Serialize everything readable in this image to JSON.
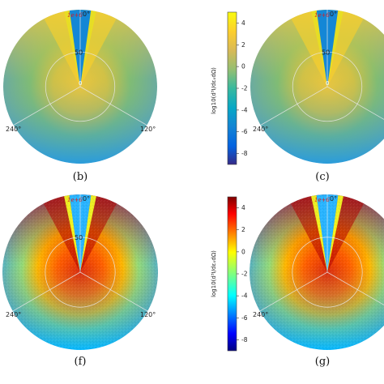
{
  "panels": [
    {
      "id": "b",
      "caption": "(b)",
      "colormap": "parula",
      "top_label": "0°",
      "red_label": "1e+6",
      "ring_label": "50",
      "center_label": "0",
      "left_label": "240°",
      "right_label": "120°"
    },
    {
      "id": "c",
      "caption": "(c)",
      "colormap": "parula",
      "top_label": "0°",
      "red_label": "1e+6",
      "ring_label": "50",
      "center_label": "0",
      "left_label": "240°",
      "right_label": ""
    },
    {
      "id": "f",
      "caption": "(f)",
      "colormap": "jet",
      "top_label": "0°",
      "red_label": "1e+6",
      "ring_label": "50",
      "center_label": "",
      "left_label": "240°",
      "right_label": "120°"
    },
    {
      "id": "g",
      "caption": "(g)",
      "colormap": "jet",
      "top_label": "0°",
      "red_label": "1e+6",
      "ring_label": "",
      "center_label": "",
      "left_label": "240°",
      "right_label": ""
    }
  ],
  "colorbars": [
    {
      "colormap": "parula",
      "label": "log10(d³I/dεₓdΩ)",
      "ticks": [
        "4",
        "2",
        "0",
        "-2",
        "-4",
        "-6",
        "-8"
      ],
      "range": [
        -9,
        5
      ]
    },
    {
      "colormap": "jet",
      "label": "log10(d³I/dεₓdΩ)",
      "ticks": [
        "4",
        "2",
        "0",
        "-2",
        "-4",
        "-6",
        "-8"
      ],
      "range": [
        -9,
        5
      ]
    }
  ],
  "colors": {
    "parula": [
      "#352a87",
      "#0363e1",
      "#1485d4",
      "#06a7c6",
      "#38b99e",
      "#92bf73",
      "#d9ba56",
      "#fcce2e",
      "#f9fb0e"
    ],
    "jet": [
      "#00007f",
      "#0000ff",
      "#007fff",
      "#00ffff",
      "#7fff7f",
      "#ffff00",
      "#ff7f00",
      "#ff0000",
      "#7f0000"
    ]
  }
}
